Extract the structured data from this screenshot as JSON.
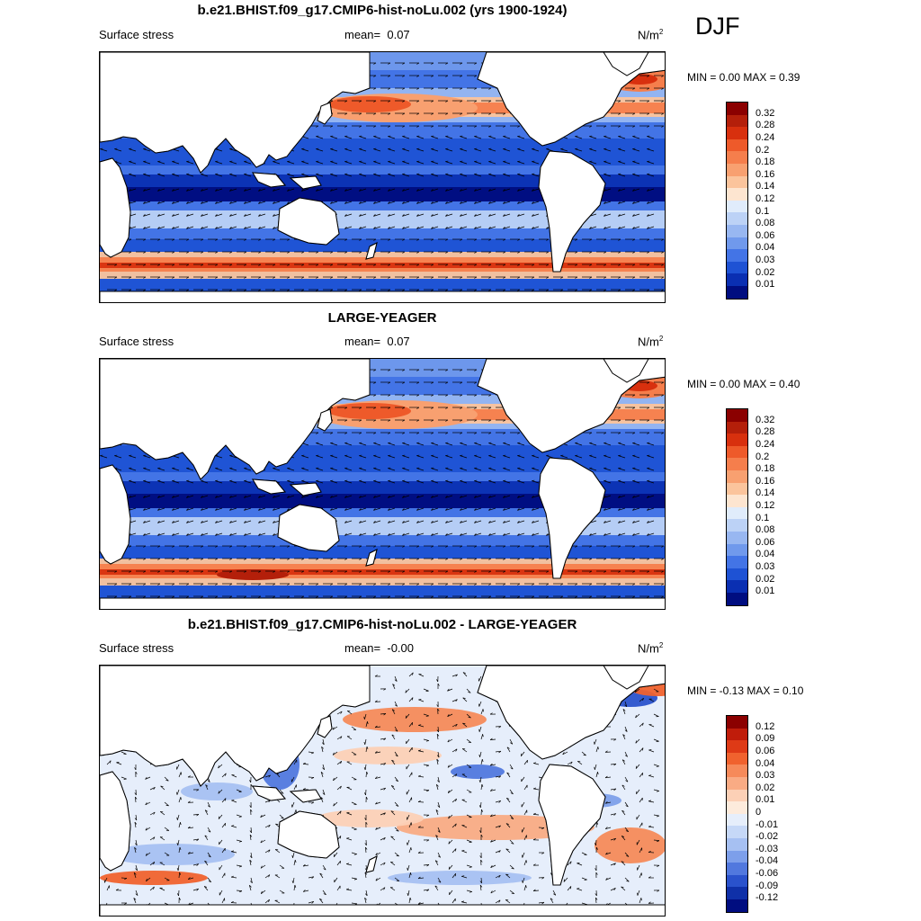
{
  "season": "DJF",
  "panels": [
    {
      "title": "b.e21.BHIST.f09_g17.CMIP6-hist-noLu.002 (yrs 1900-1924)",
      "left_label": "Surface stress",
      "mean_label": "mean=",
      "mean_value": "0.07",
      "units": "N/m",
      "units_sup": "2",
      "min_max": "MIN =   0.00 MAX =   0.39",
      "colorbar_ticks": [
        "0.32",
        "0.28",
        "0.24",
        "0.2",
        "0.18",
        "0.16",
        "0.14",
        "0.12",
        "0.1",
        "0.08",
        "0.06",
        "0.04",
        "0.03",
        "0.02",
        "0.01"
      ]
    },
    {
      "title": "LARGE-YEAGER",
      "left_label": "Surface stress",
      "mean_label": "mean=",
      "mean_value": "0.07",
      "units": "N/m",
      "units_sup": "2",
      "min_max": "MIN =   0.00 MAX =   0.40",
      "colorbar_ticks": [
        "0.32",
        "0.28",
        "0.24",
        "0.2",
        "0.18",
        "0.16",
        "0.14",
        "0.12",
        "0.1",
        "0.08",
        "0.06",
        "0.04",
        "0.03",
        "0.02",
        "0.01"
      ]
    },
    {
      "title": "b.e21.BHIST.f09_g17.CMIP6-hist-noLu.002 - LARGE-YEAGER",
      "left_label": "Surface stress",
      "mean_label": "mean=",
      "mean_value": "-0.00",
      "units": "N/m",
      "units_sup": "2",
      "min_max": "MIN =  -0.13 MAX =   0.10",
      "colorbar_ticks": [
        "0.12",
        "0.09",
        "0.06",
        "0.04",
        "0.03",
        "0.02",
        "0.01",
        "0",
        "-0.01",
        "-0.02",
        "-0.03",
        "-0.04",
        "-0.06",
        "-0.09",
        "-0.12"
      ]
    }
  ],
  "colors": {
    "abs_scale": [
      "#8b0000",
      "#b41f0a",
      "#d8300e",
      "#ee5a2a",
      "#f57e4c",
      "#f8a070",
      "#fbc49c",
      "#fde5d0",
      "#e0ecfb",
      "#bcd2f6",
      "#98b7f1",
      "#7099ec",
      "#4374e6",
      "#1e52d4",
      "#0a2fb2",
      "#000d80"
    ],
    "diff_scale": [
      "#8b0000",
      "#c01c0a",
      "#de3a16",
      "#f0622e",
      "#f68a5a",
      "#f9ab84",
      "#fcd0b6",
      "#fdebdc",
      "#e6eefb",
      "#c6d8f7",
      "#a6c0f2",
      "#7d9fea",
      "#5178de",
      "#2a52cc",
      "#0f30a8",
      "#000d80"
    ],
    "land": "#ffffff",
    "coast": "#000000"
  }
}
